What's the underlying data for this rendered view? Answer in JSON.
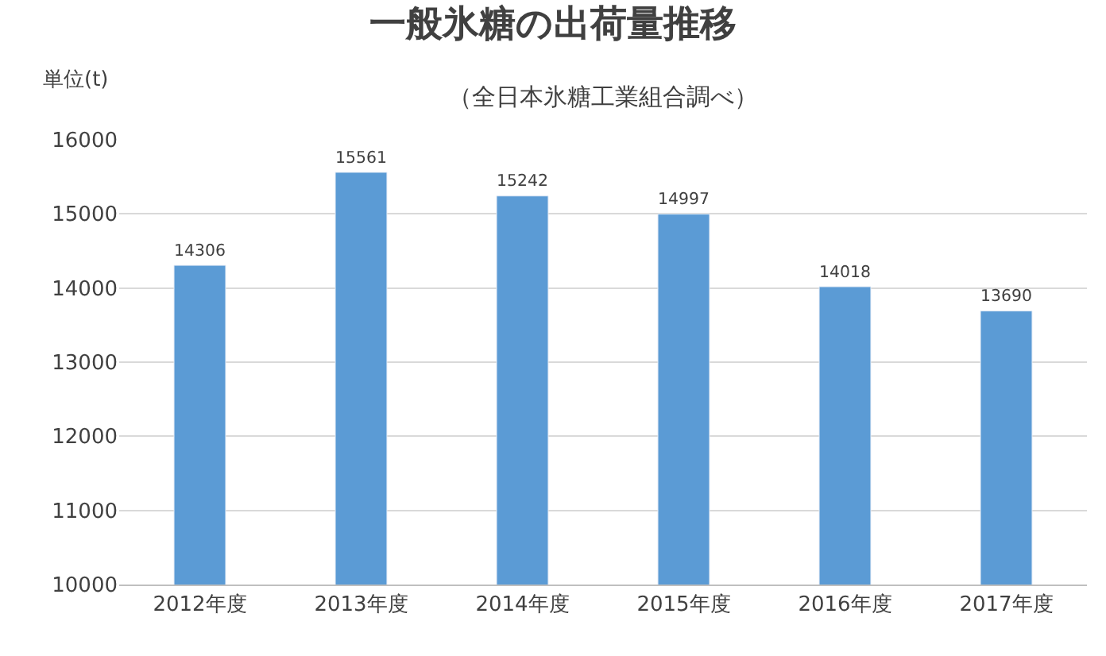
{
  "chart_data": {
    "type": "bar",
    "title": "一般氷糖の出荷量推移",
    "subtitle": "（全日本氷糖工業組合調べ）",
    "ylabel": "単位(t)",
    "categories": [
      "2012年度",
      "2013年度",
      "2014年度",
      "2015年度",
      "2016年度",
      "2017年度"
    ],
    "values": [
      14306,
      15561,
      15242,
      14997,
      14018,
      13690
    ],
    "color": "#5b9bd5",
    "ylim": [
      10000,
      16000
    ],
    "yticks": [
      10000,
      11000,
      12000,
      13000,
      14000,
      15000,
      16000
    ],
    "grid": "y",
    "data_labels": true
  }
}
